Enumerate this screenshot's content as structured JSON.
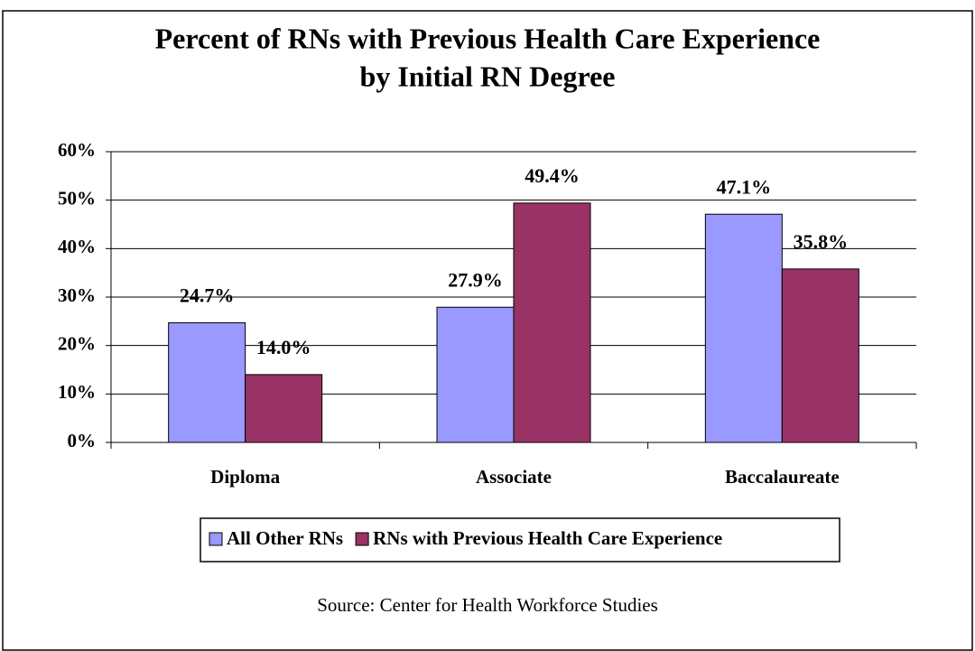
{
  "chart_data": {
    "type": "bar",
    "title": [
      "Percent of RNs with Previous Health Care Experience",
      "by Initial RN Degree"
    ],
    "categories": [
      "Diploma",
      "Associate",
      "Baccalaureate"
    ],
    "series": [
      {
        "name": "All Other RNs",
        "color": "#9999ff",
        "values": [
          24.7,
          27.9,
          47.1
        ],
        "value_labels": [
          "24.7%",
          "27.9%",
          "47.1%"
        ]
      },
      {
        "name": "RNs with Previous Health Care Experience",
        "color": "#993366",
        "values": [
          14.0,
          49.4,
          35.8
        ],
        "value_labels": [
          "14.0%",
          "49.4%",
          "35.8%"
        ]
      }
    ],
    "ylim": [
      0,
      60
    ],
    "yticks": [
      {
        "value": 0,
        "label": "0%"
      },
      {
        "value": 10,
        "label": "10%"
      },
      {
        "value": 20,
        "label": "20%"
      },
      {
        "value": 30,
        "label": "30%"
      },
      {
        "value": 40,
        "label": "40%"
      },
      {
        "value": 50,
        "label": "50%"
      },
      {
        "value": 60,
        "label": "60%"
      }
    ],
    "grid": true,
    "legend": "bottom",
    "source": "Source: Center for Health Workforce Studies"
  }
}
